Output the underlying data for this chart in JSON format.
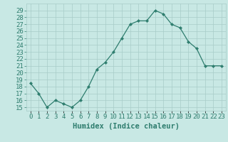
{
  "xlabel": "Humidex (Indice chaleur)",
  "x": [
    0,
    1,
    2,
    3,
    4,
    5,
    6,
    7,
    8,
    9,
    10,
    11,
    12,
    13,
    14,
    15,
    16,
    17,
    18,
    19,
    20,
    21,
    22,
    23
  ],
  "y": [
    18.5,
    17.0,
    15.0,
    16.0,
    15.5,
    15.0,
    16.0,
    18.0,
    20.5,
    21.5,
    23.0,
    25.0,
    27.0,
    27.5,
    27.5,
    29.0,
    28.5,
    27.0,
    26.5,
    24.5,
    23.5,
    21.0,
    21.0,
    21.0
  ],
  "line_color": "#2e7d6e",
  "marker_color": "#2e7d6e",
  "bg_color": "#c8e8e4",
  "grid_color": "#a8ccc8",
  "xlabel_color": "#2e7d6e",
  "tick_color": "#2e7d6e",
  "ylim": [
    14.5,
    30
  ],
  "yticks": [
    15,
    16,
    17,
    18,
    19,
    20,
    21,
    22,
    23,
    24,
    25,
    26,
    27,
    28,
    29
  ],
  "tick_fontsize": 6.5,
  "xlabel_fontsize": 7.5
}
